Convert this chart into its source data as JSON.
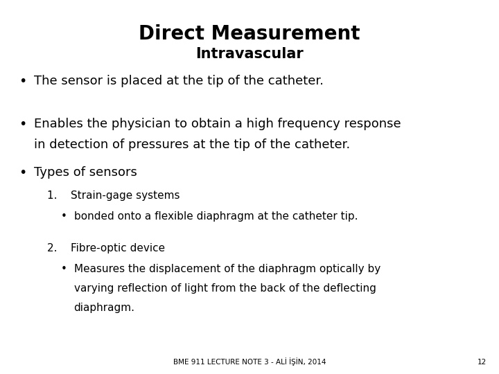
{
  "title": "Direct Measurement",
  "subtitle": "Intravascular",
  "bullet1": "The sensor is placed at the tip of the catheter.",
  "bullet2_line1": "Enables the physician to obtain a high frequency response",
  "bullet2_line2": "in detection of pressures at the tip of the catheter.",
  "bullet3": "Types of sensors",
  "num1_text": "1.    Strain-gage systems",
  "sub1": "bonded onto a flexible diaphragm at the catheter tip.",
  "num2_text": "2.    Fibre-optic device",
  "sub2_line1": "Measures the displacement of the diaphragm optically by",
  "sub2_line2": "varying reflection of light from the back of the deflecting",
  "sub2_line3": "diaphragm.",
  "footer": "BME 911 LECTURE NOTE 3 - ALİ İŞİN, 2014",
  "page_num": "12",
  "bg_color": "#ffffff",
  "text_color": "#000000",
  "title_fontsize": 20,
  "subtitle_fontsize": 15,
  "body_fontsize": 13,
  "sub_fontsize": 11,
  "footer_fontsize": 7.5
}
